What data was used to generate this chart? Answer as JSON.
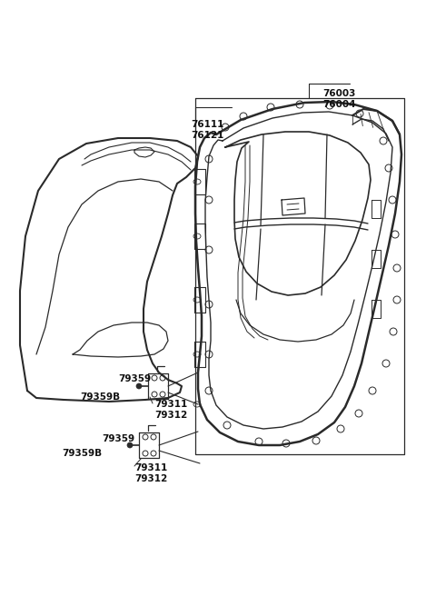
{
  "background_color": "#ffffff",
  "line_color": "#2a2a2a",
  "text_color": "#111111",
  "figsize": [
    4.8,
    6.56
  ],
  "dpi": 100,
  "label_76003": "76003\n76004",
  "label_76111": "76111\n76121",
  "label_79359_top": "79359",
  "label_79359B_top": "79359B",
  "label_79311_top": "79311\n79312",
  "label_79359_bot": "79359",
  "label_79359B_bot": "79359B",
  "label_79311_bot": "79311\n79312"
}
